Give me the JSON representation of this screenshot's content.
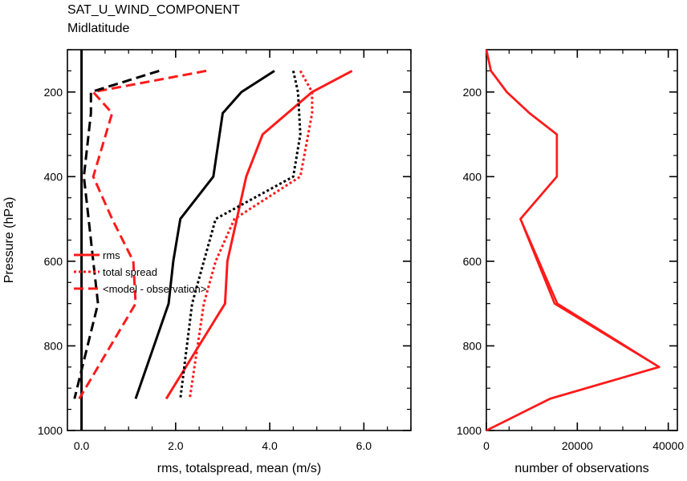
{
  "header": {
    "title": "SAT_U_WIND_COMPONENT",
    "subtitle": "Midlatitude"
  },
  "colors": {
    "red": "#ff1a1a",
    "black": "#000000"
  },
  "chart_data": [
    {
      "type": "line",
      "xlabel": "rms, totalspread, mean (m/s)",
      "ylabel": "Pressure (hPa)",
      "xlim": [
        -0.3,
        7.0
      ],
      "ylim": [
        1000,
        100
      ],
      "y_inverted": true,
      "xticks": [
        0.0,
        2.0,
        4.0,
        6.0
      ],
      "xtick_labels": [
        "0.0",
        "2.0",
        "4.0",
        "6.0"
      ],
      "yticks": [
        200,
        400,
        600,
        800,
        1000
      ],
      "ytick_labels": [
        "200",
        "400",
        "600",
        "800",
        "1000"
      ],
      "zero_line": 0,
      "legend_position": "left-middle",
      "legend": [
        {
          "label": "rms",
          "style": "solid"
        },
        {
          "label": "total spread",
          "style": "dotted"
        },
        {
          "label": "<model - observation>",
          "style": "dashed"
        }
      ],
      "series": [
        {
          "style": "solid",
          "color": "red",
          "x": [
            5.75,
            4.9,
            3.85,
            3.5,
            3.3,
            3.1,
            3.05,
            1.8
          ],
          "y": [
            150,
            200,
            300,
            400,
            500,
            600,
            700,
            925
          ]
        },
        {
          "style": "dotted",
          "color": "red",
          "x": [
            4.65,
            4.9,
            4.9,
            4.65,
            3.25,
            2.85,
            2.6,
            2.3
          ],
          "y": [
            150,
            200,
            250,
            400,
            500,
            600,
            700,
            925
          ]
        },
        {
          "style": "dashed",
          "color": "red",
          "x": [
            2.65,
            0.25,
            0.65,
            0.25,
            0.65,
            1.1,
            1.15,
            -0.05
          ],
          "y": [
            150,
            200,
            250,
            400,
            500,
            600,
            700,
            925
          ]
        },
        {
          "style": "solid",
          "color": "black",
          "x": [
            4.1,
            3.4,
            3.0,
            2.8,
            2.1,
            1.95,
            1.85,
            1.15
          ],
          "y": [
            150,
            200,
            250,
            400,
            500,
            600,
            700,
            925
          ]
        },
        {
          "style": "dotted",
          "color": "black",
          "x": [
            4.5,
            4.6,
            4.65,
            4.5,
            2.85,
            2.6,
            2.35,
            2.1
          ],
          "y": [
            150,
            200,
            300,
            400,
            500,
            600,
            700,
            925
          ]
        },
        {
          "style": "dashed",
          "color": "black",
          "x": [
            1.65,
            0.2,
            0.2,
            0.05,
            0.15,
            0.25,
            0.35,
            -0.15
          ],
          "y": [
            150,
            200,
            250,
            400,
            500,
            600,
            700,
            925
          ]
        }
      ]
    },
    {
      "type": "line",
      "xlabel": "number of observations",
      "ylabel": "",
      "xlim": [
        0,
        42000
      ],
      "ylim": [
        1000,
        100
      ],
      "y_inverted": true,
      "xticks": [
        0,
        20000,
        40000
      ],
      "xtick_labels": [
        "0",
        "20000",
        "40000"
      ],
      "yticks": [
        200,
        400,
        600,
        800,
        1000
      ],
      "ytick_labels": [
        "200",
        "400",
        "600",
        "800",
        "1000"
      ],
      "series": [
        {
          "style": "solid",
          "color": "red",
          "x": [
            0,
            1000,
            4500,
            9500,
            15500,
            15500,
            7500,
            15000,
            38000,
            14000,
            0
          ],
          "y": [
            100,
            150,
            200,
            250,
            300,
            400,
            500,
            700,
            850,
            925,
            1000
          ]
        },
        {
          "style": "solid",
          "color": "red",
          "x": [
            0,
            1000,
            4500,
            9500,
            15500,
            15500,
            7500,
            15600,
            38000,
            14000,
            0
          ],
          "y": [
            100,
            150,
            200,
            250,
            300,
            400,
            500,
            700,
            850,
            925,
            1000
          ]
        }
      ]
    }
  ]
}
